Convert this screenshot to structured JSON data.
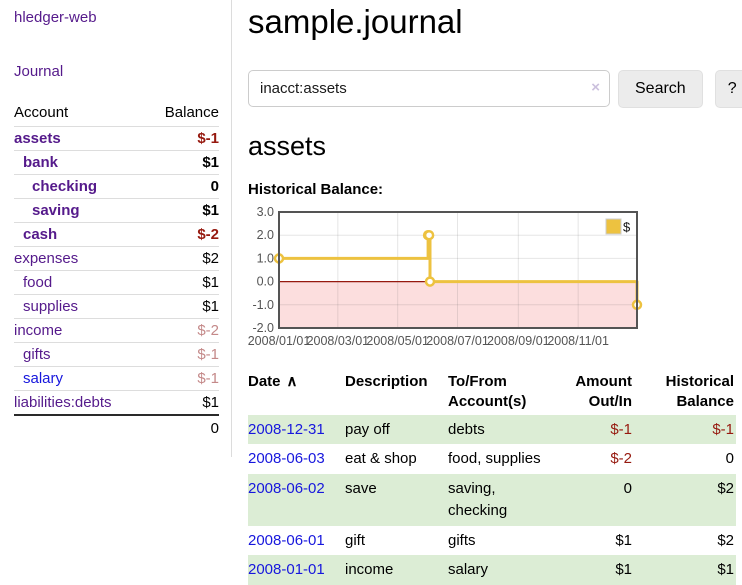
{
  "header": {
    "title": "sample.journal"
  },
  "search": {
    "query": "inacct:assets",
    "clear_icon": "×",
    "button": "Search",
    "help_button": "?"
  },
  "account_page": {
    "heading": "assets",
    "chart_title": "Historical Balance:"
  },
  "sidebar": {
    "brand": "hledger-web",
    "journal_link": "Journal",
    "table": {
      "account_header": "Account",
      "balance_header": "Balance",
      "rows": [
        {
          "name": "assets",
          "indent": 0,
          "balance": "$-1",
          "bold": true,
          "negative": "strong"
        },
        {
          "name": "bank",
          "indent": 1,
          "balance": "$1",
          "bold": true,
          "negative": "none"
        },
        {
          "name": "checking",
          "indent": 2,
          "balance": "0",
          "bold": true,
          "negative": "none"
        },
        {
          "name": "saving",
          "indent": 2,
          "balance": "$1",
          "bold": true,
          "negative": "none"
        },
        {
          "name": "cash",
          "indent": 1,
          "balance": "$-2",
          "bold": true,
          "negative": "strong"
        },
        {
          "name": "expenses",
          "indent": 0,
          "balance": "$2",
          "bold": false,
          "negative": "none"
        },
        {
          "name": "food",
          "indent": 1,
          "balance": "$1",
          "bold": false,
          "negative": "none"
        },
        {
          "name": "supplies",
          "indent": 1,
          "balance": "$1",
          "bold": false,
          "negative": "none"
        },
        {
          "name": "income",
          "indent": 0,
          "balance": "$-2",
          "bold": false,
          "negative": "soft"
        },
        {
          "name": "gifts",
          "indent": 1,
          "balance": "$-1",
          "bold": false,
          "negative": "soft"
        },
        {
          "name": "salary",
          "indent": 1,
          "balance": "$-1",
          "bold": false,
          "negative": "soft",
          "link_style": "blue"
        },
        {
          "name": "liabilities:debts",
          "indent": 0,
          "balance": "$1",
          "bold": false,
          "negative": "none"
        }
      ],
      "total": "0"
    }
  },
  "chart_data": {
    "type": "line",
    "step": true,
    "title": "Historical Balance:",
    "ylim": [
      -2,
      3
    ],
    "x_range": [
      "2008-01-01",
      "2008-12-31"
    ],
    "y_ticks": [
      3.0,
      2.0,
      1.0,
      0.0,
      -1.0,
      -2.0
    ],
    "x_ticks": [
      {
        "date": "2008-01-01",
        "label": "2008/01/01"
      },
      {
        "date": "2008-03-01",
        "label": "2008/03/01"
      },
      {
        "date": "2008-05-01",
        "label": "2008/05/01"
      },
      {
        "date": "2008-07-01",
        "label": "2008/07/01"
      },
      {
        "date": "2008-09-01",
        "label": "2008/09/01"
      },
      {
        "date": "2008-11-01",
        "label": "2008/11/01"
      }
    ],
    "series": [
      {
        "name": "$",
        "color": "#edc240",
        "points": [
          [
            "2008-01-01",
            1
          ],
          [
            "2008-06-01",
            2
          ],
          [
            "2008-06-02",
            2
          ],
          [
            "2008-06-03",
            0
          ],
          [
            "2008-12-31",
            -1
          ]
        ]
      }
    ],
    "legend": {
      "label": "$",
      "position": "top-right"
    },
    "grid": true,
    "negative_region_color": "#fcdede",
    "zero_line_color": "#96190f",
    "border_color": "#545454",
    "tick_color": "#545454"
  },
  "register": {
    "sort_icon": "∧",
    "columns": [
      {
        "key": "date",
        "label": "Date",
        "sorted": true,
        "sortable": true,
        "align": "c-date"
      },
      {
        "key": "description",
        "label": "Description",
        "sorted": false,
        "sortable": true,
        "align": "c-desc"
      },
      {
        "key": "accounts",
        "label": "To/From Account(s)",
        "sorted": false,
        "sortable": false,
        "align": "c-tofrom"
      },
      {
        "key": "amount",
        "label": "Amount Out/In",
        "sorted": false,
        "sortable": false,
        "align": "c-amount"
      },
      {
        "key": "balance",
        "label": "Historical Balance",
        "sorted": false,
        "sortable": false,
        "align": "c-bal"
      }
    ],
    "rows": [
      {
        "date": "2008-12-31",
        "description": "pay off",
        "accounts": "debts",
        "amount": "$-1",
        "balance": "$-1",
        "amount_negative": true,
        "balance_negative": true
      },
      {
        "date": "2008-06-03",
        "description": "eat & shop",
        "accounts": "food, supplies",
        "amount": "$-2",
        "balance": "0",
        "amount_negative": true,
        "balance_negative": false
      },
      {
        "date": "2008-06-02",
        "description": "save",
        "accounts": "saving, checking",
        "amount": "0",
        "balance": "$2",
        "amount_negative": false,
        "balance_negative": false
      },
      {
        "date": "2008-06-01",
        "description": "gift",
        "accounts": "gifts",
        "amount": "$1",
        "balance": "$2",
        "amount_negative": false,
        "balance_negative": false
      },
      {
        "date": "2008-01-01",
        "description": "income",
        "accounts": "salary",
        "amount": "$1",
        "balance": "$1",
        "amount_negative": false,
        "balance_negative": false
      }
    ]
  },
  "colors": {
    "link_purple": "#551a8b",
    "link_blue": "#1717dd",
    "negative_strong": "#96190f",
    "negative_soft": "#c48989",
    "row_stripe_green": "#dcedd5",
    "chart_gold": "#edc240",
    "chart_negative_bg": "#fcdede",
    "chart_border": "#545454",
    "button_bg": "#ececec"
  }
}
